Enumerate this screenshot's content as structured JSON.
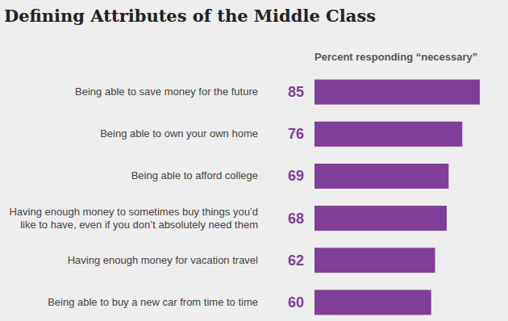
{
  "chart_data": {
    "type": "bar",
    "title": "Defining Attributes of the Middle Class",
    "subtitle": "Percent responding “necessary”",
    "orientation": "horizontal",
    "categories": [
      "Being able to save money for the future",
      "Being able to own your own home",
      "Being able to afford college",
      "Having enough money to sometimes buy things you’d like to have, even if you don’t absolutely need them",
      "Having enough money for vacation travel",
      "Being able to buy a new car from time to time"
    ],
    "values": [
      85,
      76,
      69,
      68,
      62,
      60
    ],
    "color": "#7f3f98",
    "xlim": [
      0,
      85
    ],
    "data_labels": true,
    "tick_labels": "y",
    "grid": false
  }
}
